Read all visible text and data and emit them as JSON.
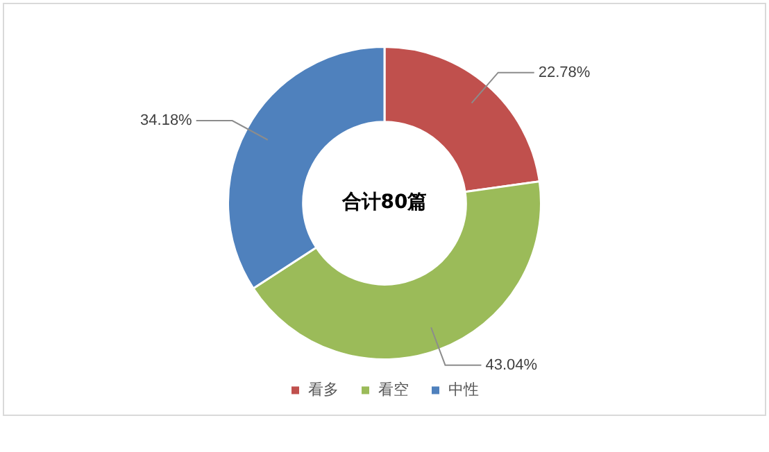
{
  "chart_data": {
    "type": "donut",
    "categories": [
      "看多",
      "看空",
      "中性"
    ],
    "values": [
      22.78,
      43.04,
      34.18
    ],
    "colors": [
      "#c0504d",
      "#9bbb59",
      "#4f81bd"
    ],
    "value_labels": [
      "22.78%",
      "43.04%",
      "34.18%"
    ],
    "annotations": [
      "合计80篇"
    ],
    "legend": "bottom"
  }
}
